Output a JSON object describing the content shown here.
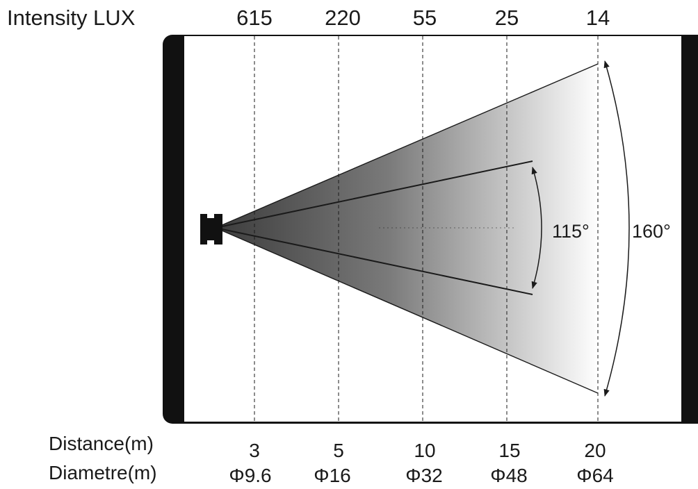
{
  "intensity_label": "Intensity LUX",
  "distance_label": "Distance(m)",
  "diameter_label": "Diametre(m)",
  "columns": [
    {
      "lux": "615",
      "distance": "3",
      "diameter": "Φ9.6"
    },
    {
      "lux": "220",
      "distance": "5",
      "diameter": "Φ16"
    },
    {
      "lux": "55",
      "distance": "10",
      "diameter": "Φ32"
    },
    {
      "lux": "25",
      "distance": "15",
      "diameter": "Φ48"
    },
    {
      "lux": "14",
      "distance": "20",
      "diameter": "Φ64"
    }
  ],
  "angles": {
    "inner": "115°",
    "outer": "160°"
  },
  "colors": {
    "frame": "#111111",
    "beam_dark": "#3c3c3c",
    "beam_light": "#ffffff"
  }
}
